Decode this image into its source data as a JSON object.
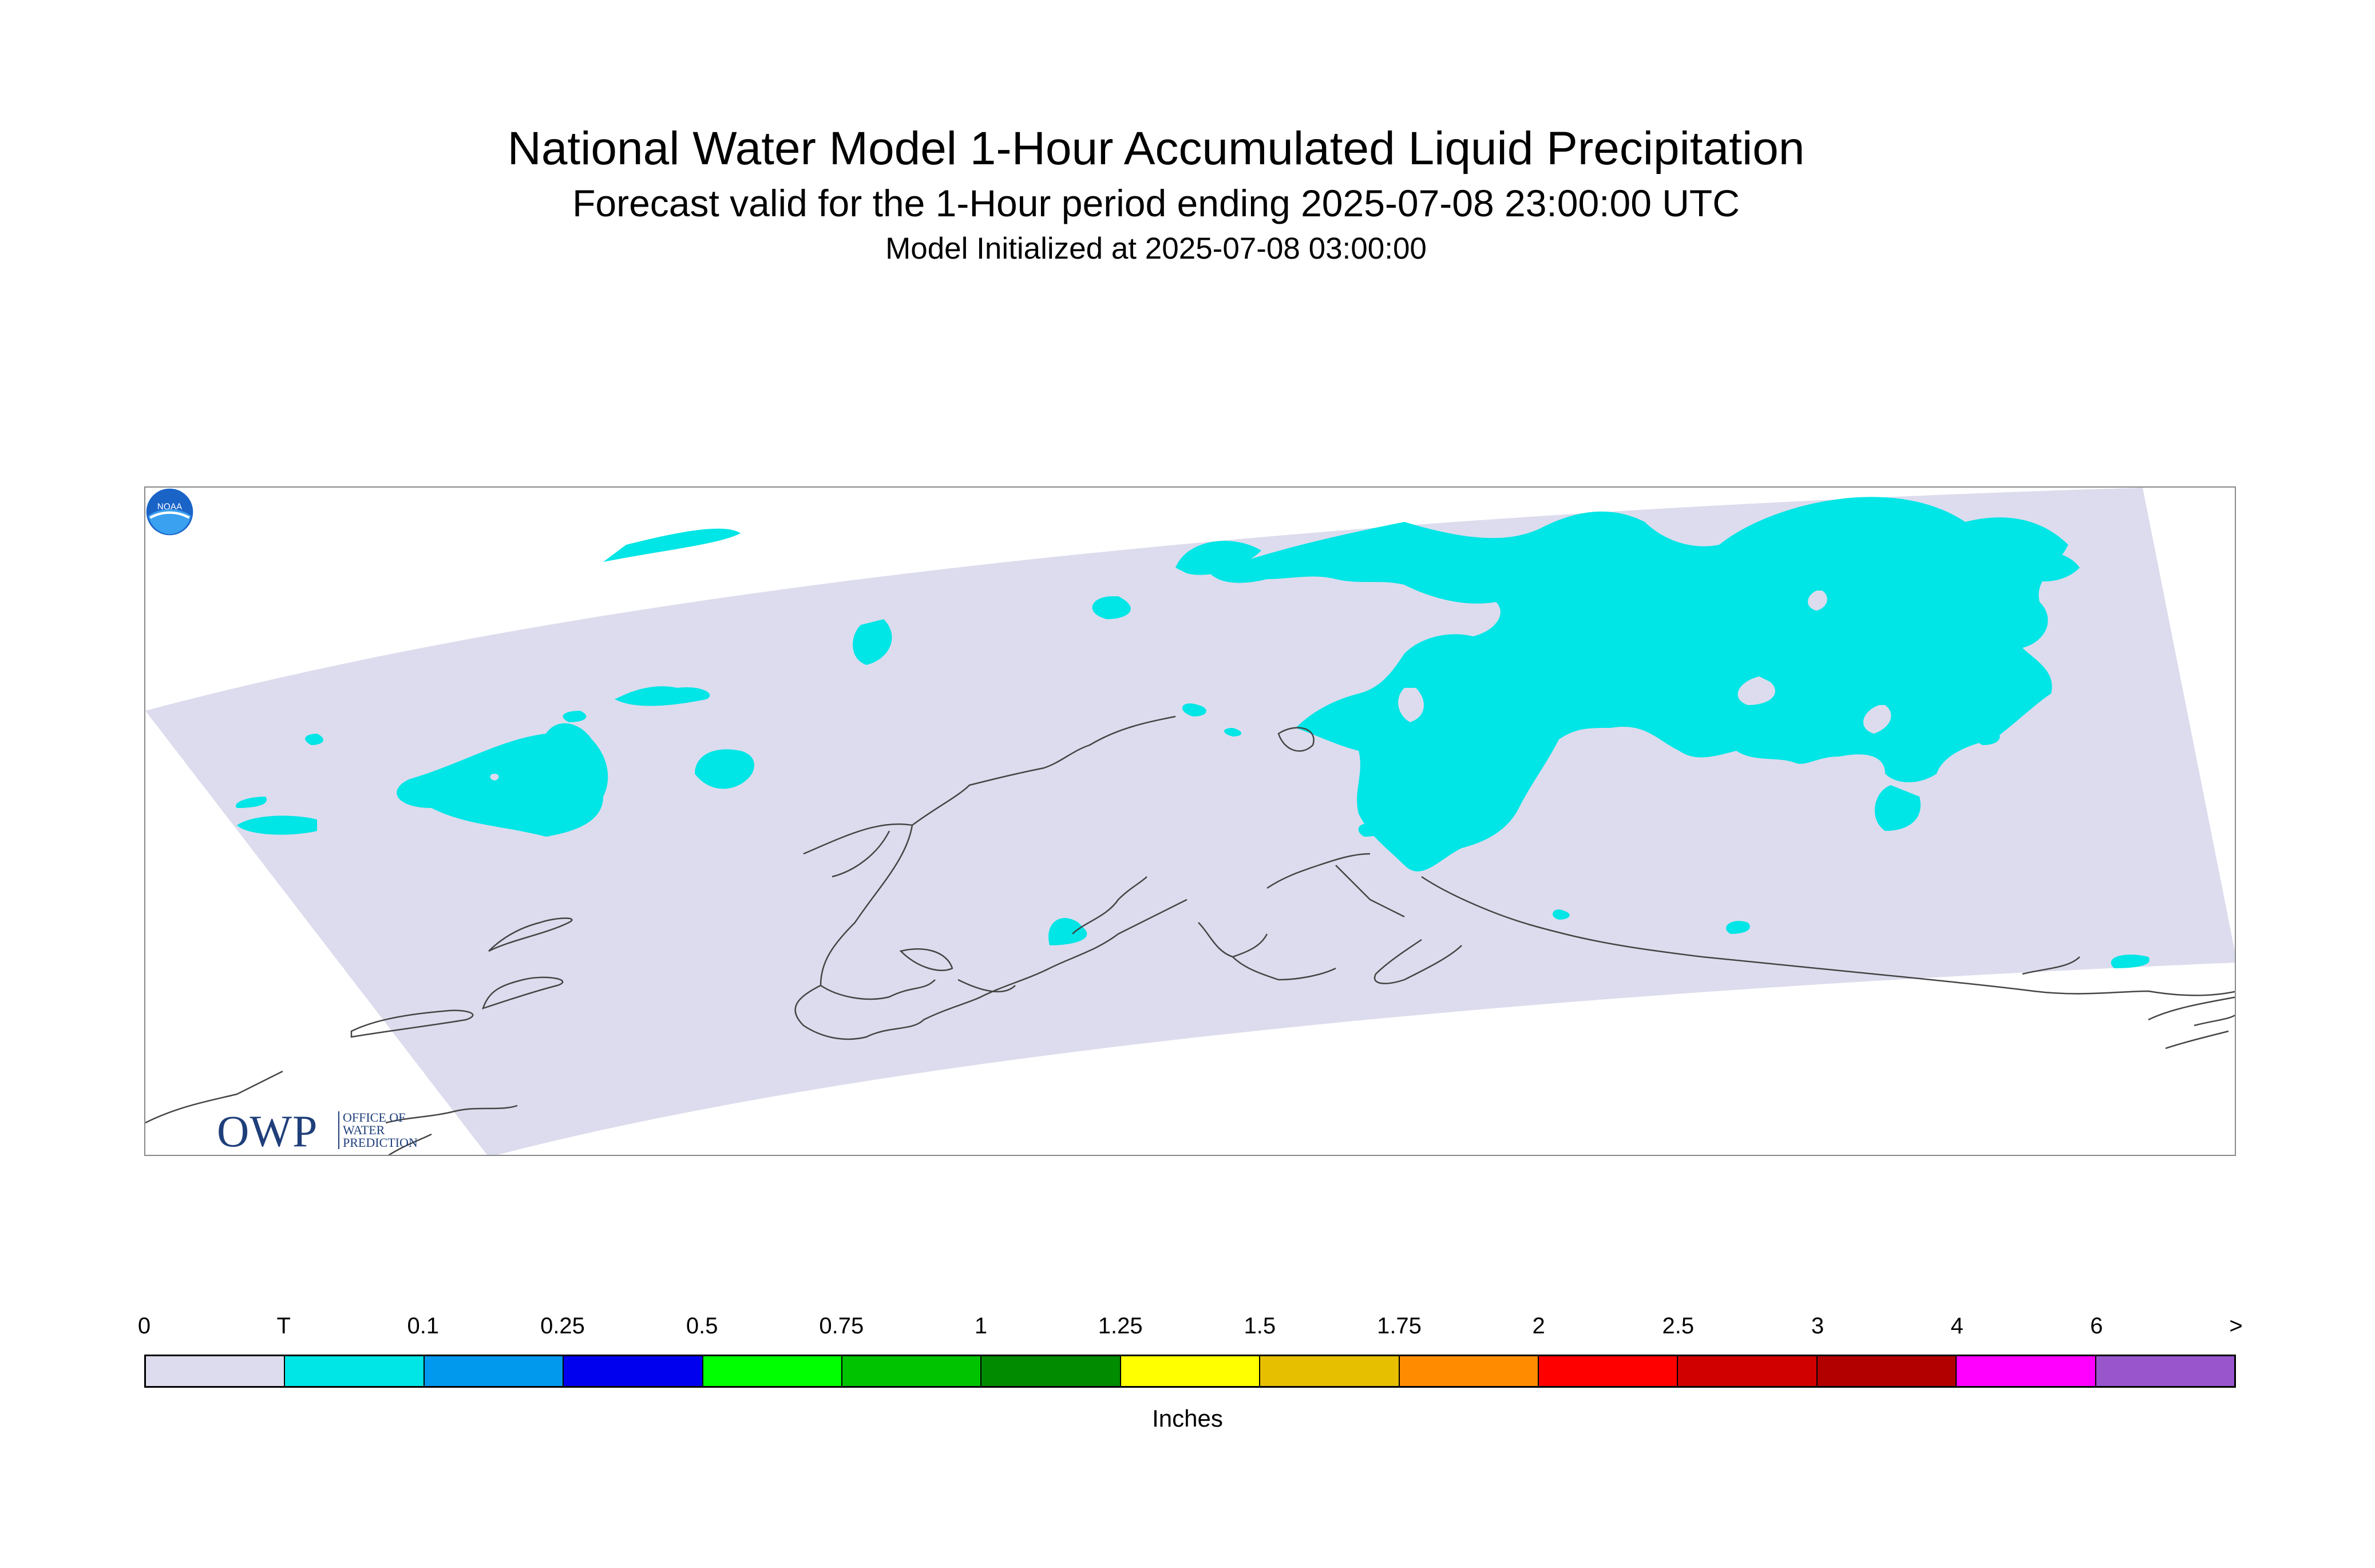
{
  "header": {
    "title": "National Water Model 1-Hour Accumulated Liquid Precipitation",
    "subtitle": "Forecast valid for the 1-Hour period ending 2025-07-08 23:00:00 UTC",
    "init": "Model Initialized at 2025-07-08 03:00:00"
  },
  "map": {
    "domain_fill_color": "#dcdcee",
    "precip_trace_color": "#00e5e5",
    "coastline_color": "#444444",
    "logos": {
      "owp_text": "OWP",
      "owp_subtext": "OFFICE OF WATER PREDICTION",
      "noaa_text": "NOAA"
    }
  },
  "legend": {
    "labels": [
      "0",
      "T",
      "0.1",
      "0.25",
      "0.5",
      "0.75",
      "1",
      "1.25",
      "1.5",
      "1.75",
      "2",
      "2.5",
      "3",
      "4",
      "6",
      ">"
    ],
    "colors": [
      "#dcdcee",
      "#00e5e5",
      "#0099ee",
      "#0000ee",
      "#00ff00",
      "#00c300",
      "#008b00",
      "#ffff00",
      "#e5bf00",
      "#ff8c00",
      "#ff0000",
      "#d10000",
      "#b20000",
      "#ff00ff",
      "#9955cc"
    ],
    "units": "Inches"
  }
}
